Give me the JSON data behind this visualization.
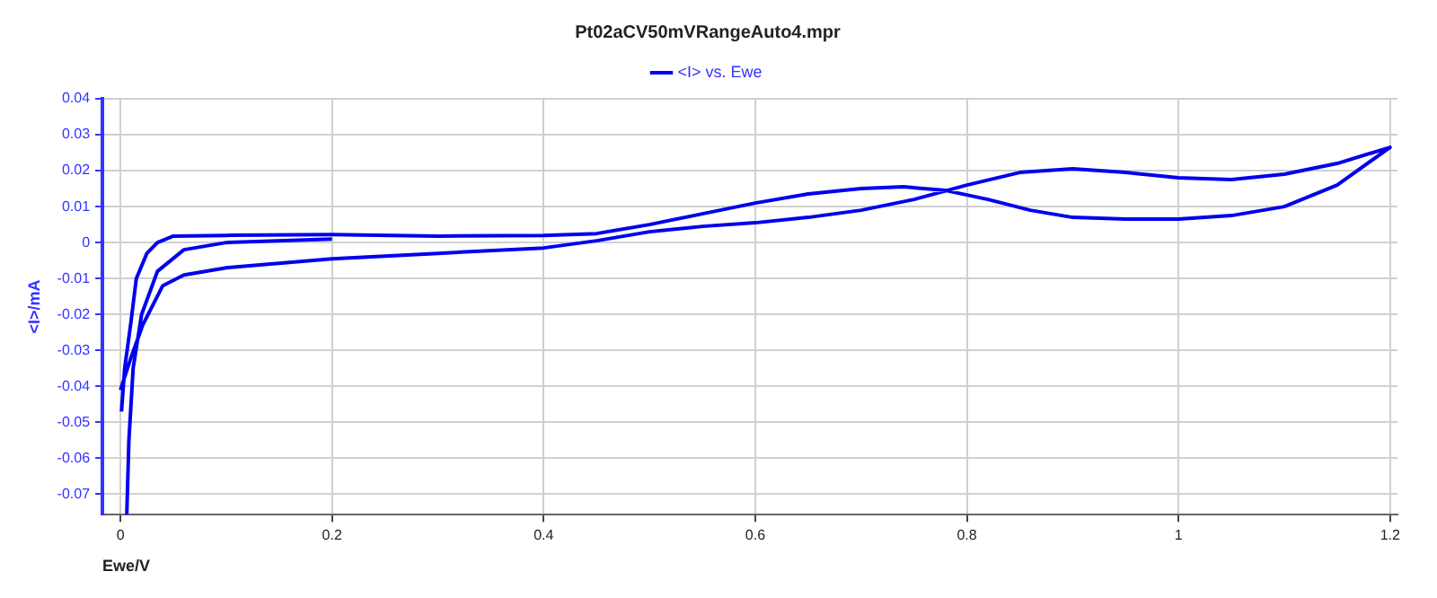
{
  "chart_data": {
    "type": "line",
    "title": "Pt02aCV50mVRangeAuto4.mpr",
    "xlabel": "Ewe/V",
    "ylabel": "<I>/mA",
    "series": [
      {
        "name": "<I> vs. Ewe",
        "color": "#0000ee",
        "x": [
          0.001,
          0.004,
          0.01,
          0.015,
          0.025,
          0.035,
          0.05,
          0.1,
          0.2,
          0.3,
          0.4,
          0.45,
          0.5,
          0.55,
          0.6,
          0.65,
          0.7,
          0.74,
          0.78,
          0.82,
          0.86,
          0.9,
          0.95,
          1.0,
          1.05,
          1.1,
          1.15,
          1.2,
          1.15,
          1.1,
          1.05,
          1.0,
          0.95,
          0.9,
          0.85,
          0.8,
          0.75,
          0.7,
          0.65,
          0.6,
          0.55,
          0.5,
          0.45,
          0.4,
          0.3,
          0.2,
          0.1,
          0.06,
          0.04,
          0.021,
          0.01,
          0.0,
          null,
          0.006,
          0.008,
          0.012,
          0.02,
          0.035,
          0.06,
          0.1,
          0.2
        ],
        "values": [
          -0.047,
          -0.035,
          -0.022,
          -0.01,
          -0.003,
          0.0,
          0.0018,
          0.002,
          0.0022,
          0.0018,
          0.002,
          0.0025,
          0.005,
          0.008,
          0.011,
          0.0135,
          0.015,
          0.0155,
          0.0145,
          0.012,
          0.009,
          0.007,
          0.0065,
          0.0065,
          0.0075,
          0.01,
          0.016,
          0.0265,
          0.022,
          0.019,
          0.0175,
          0.018,
          0.0195,
          0.0205,
          0.0195,
          0.016,
          0.012,
          0.009,
          0.007,
          0.0055,
          0.0045,
          0.003,
          0.0005,
          -0.0015,
          -0.003,
          -0.0045,
          -0.007,
          -0.009,
          -0.012,
          -0.023,
          -0.032,
          -0.041,
          null,
          -0.0757,
          -0.055,
          -0.035,
          -0.02,
          -0.008,
          -0.002,
          0.0,
          0.001
        ]
      }
    ],
    "xlim": [
      -0.017,
      1.207
    ],
    "ylim": [
      -0.0757,
      0.04
    ],
    "xticks": [
      0,
      0.2,
      0.4,
      0.6,
      0.8,
      1,
      1.2
    ],
    "yticks": [
      -0.07,
      -0.06,
      -0.05,
      -0.04,
      -0.03,
      -0.02,
      -0.01,
      0,
      0.01,
      0.02,
      0.03,
      0.04
    ],
    "grid": true,
    "legend": "top",
    "marker": "none",
    "line_style": "solid"
  }
}
